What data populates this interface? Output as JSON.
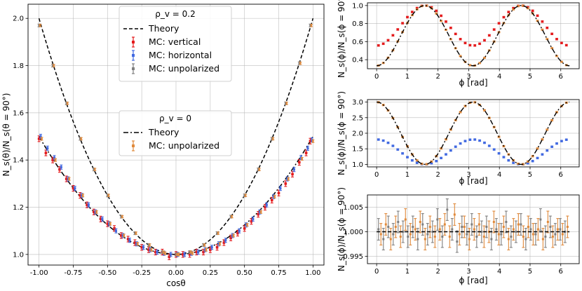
{
  "colors": {
    "theory": "#000000",
    "vertical": "#e41a1c",
    "horizontal": "#4169e1",
    "unpolarized_gray": "#7f7f7f",
    "unpolarized_orange": "#e08a3c",
    "grid": "#b0b0b0"
  },
  "chart_data": [
    {
      "id": "main",
      "type": "line",
      "xlabel": "cosθ",
      "ylabel": "N_s(θ)/N_s(θ = 90°)",
      "xlim": [
        -1.08,
        1.08
      ],
      "ylim": [
        0.955,
        2.06
      ],
      "xticks": [
        "-1.00",
        "-0.75",
        "-0.50",
        "-0.25",
        "0.00",
        "0.25",
        "0.50",
        "0.75",
        "1.00"
      ],
      "xtick_values": [
        -1.0,
        -0.75,
        -0.5,
        -0.25,
        0.0,
        0.25,
        0.5,
        0.75,
        1.0
      ],
      "yticks": [
        "1.0",
        "1.2",
        "1.4",
        "1.6",
        "1.8",
        "2.0"
      ],
      "ytick_values": [
        1.0,
        1.2,
        1.4,
        1.6,
        1.8,
        2.0
      ],
      "legend_upper": {
        "title": "ρ_v = 0.2",
        "entries": [
          "Theory",
          "MC: vertical",
          "MC: horizontal",
          "MC: unpolarized"
        ]
      },
      "legend_lower": {
        "title": "ρ_v = 0",
        "entries": [
          "Theory",
          "MC: unpolarized"
        ]
      },
      "series": [
        {
          "name": "Theory (ρ_v = 0.2)",
          "style": "dashed",
          "model": "1 + cos^2θ",
          "y_at_cos_minus1": 2.0,
          "y_at_cos0": 1.0,
          "y_at_cos1": 2.0
        },
        {
          "name": "Theory (ρ_v = 0)",
          "style": "dashdot",
          "model": "1 + 0.5 cos^2θ",
          "y_at_cos_minus1": 1.5,
          "y_at_cos0": 1.0,
          "y_at_cos1": 1.5
        },
        {
          "name": "MC: vertical",
          "marker": "errorbar",
          "x": [
            -1.0,
            -0.95,
            -0.9,
            -0.85,
            -0.8,
            -0.75,
            -0.7,
            -0.65,
            -0.6,
            -0.55,
            -0.5,
            -0.45,
            -0.4,
            -0.35,
            -0.3,
            -0.25,
            -0.2,
            -0.15,
            -0.1,
            -0.05,
            0.0,
            0.05,
            0.1,
            0.15,
            0.2,
            0.25,
            0.3,
            0.35,
            0.4,
            0.45,
            0.5,
            0.55,
            0.6,
            0.65,
            0.7,
            0.75,
            0.8,
            0.85,
            0.9,
            0.95,
            0.98
          ],
          "y": [
            1.49,
            1.43,
            1.4,
            1.36,
            1.32,
            1.28,
            1.25,
            1.21,
            1.18,
            1.15,
            1.13,
            1.11,
            1.08,
            1.065,
            1.05,
            1.03,
            1.02,
            1.01,
            1.01,
            0.99,
            1.0,
            1.0,
            1.0,
            1.01,
            1.01,
            1.02,
            1.03,
            1.05,
            1.07,
            1.09,
            1.11,
            1.14,
            1.17,
            1.2,
            1.23,
            1.26,
            1.3,
            1.34,
            1.39,
            1.43,
            1.48
          ]
        },
        {
          "name": "MC: horizontal",
          "marker": "errorbar",
          "x": [
            -1.0,
            -0.95,
            -0.9,
            -0.85,
            -0.8,
            -0.75,
            -0.7,
            -0.65,
            -0.6,
            -0.55,
            -0.5,
            -0.45,
            -0.4,
            -0.35,
            -0.3,
            -0.25,
            -0.2,
            -0.15,
            -0.1,
            -0.05,
            0.0,
            0.05,
            0.1,
            0.15,
            0.2,
            0.25,
            0.3,
            0.35,
            0.4,
            0.45,
            0.5,
            0.55,
            0.6,
            0.65,
            0.7,
            0.75,
            0.8,
            0.85,
            0.9,
            0.95,
            0.98
          ],
          "y": [
            1.5,
            1.45,
            1.41,
            1.37,
            1.32,
            1.28,
            1.25,
            1.21,
            1.18,
            1.15,
            1.13,
            1.1,
            1.08,
            1.06,
            1.045,
            1.03,
            1.02,
            1.01,
            1.005,
            1.0,
            1.0,
            1.0,
            1.005,
            1.01,
            1.02,
            1.03,
            1.045,
            1.06,
            1.08,
            1.1,
            1.125,
            1.15,
            1.18,
            1.21,
            1.245,
            1.28,
            1.32,
            1.36,
            1.41,
            1.45,
            1.485
          ]
        },
        {
          "name": "MC: unpolarized (ρ_v = 0.2)",
          "marker": "errorbar",
          "x": [
            -1.0,
            -0.9,
            -0.8,
            -0.7,
            -0.6,
            -0.5,
            -0.4,
            -0.3,
            -0.2,
            -0.1,
            0.0,
            0.1,
            0.2,
            0.3,
            0.4,
            0.5,
            0.6,
            0.7,
            0.8,
            0.9,
            0.98
          ],
          "y": [
            1.97,
            1.8,
            1.64,
            1.49,
            1.36,
            1.25,
            1.16,
            1.09,
            1.04,
            1.01,
            1.0,
            1.01,
            1.04,
            1.09,
            1.16,
            1.25,
            1.36,
            1.49,
            1.64,
            1.81,
            1.97
          ]
        },
        {
          "name": "MC: unpolarized (ρ_v = 0)",
          "marker": "errorbar",
          "x": [
            -1.0,
            -0.9,
            -0.8,
            -0.7,
            -0.6,
            -0.5,
            -0.4,
            -0.3,
            -0.2,
            -0.1,
            0.0,
            0.1,
            0.2,
            0.3,
            0.4,
            0.5,
            0.6,
            0.7,
            0.8,
            0.9,
            0.98
          ],
          "y": [
            1.49,
            1.4,
            1.32,
            1.25,
            1.18,
            1.13,
            1.08,
            1.045,
            1.02,
            1.005,
            1.0,
            1.005,
            1.02,
            1.045,
            1.08,
            1.125,
            1.18,
            1.245,
            1.32,
            1.405,
            1.48
          ]
        }
      ]
    },
    {
      "id": "top-right",
      "type": "line",
      "xlabel": "ϕ [rad]",
      "ylabel": "N_s(ϕ)/N_s(ϕ = 90°)",
      "xlim": [
        -0.3,
        6.6
      ],
      "ylim": [
        0.3,
        1.03
      ],
      "xticks": [
        "0",
        "1",
        "2",
        "3",
        "4",
        "5",
        "6"
      ],
      "xtick_values": [
        0,
        1,
        2,
        3,
        4,
        5,
        6
      ],
      "yticks": [
        "0.4",
        "0.6",
        "0.8",
        "1.0"
      ],
      "ytick_values": [
        0.4,
        0.6,
        0.8,
        1.0
      ],
      "series": [
        {
          "name": "MC: vertical",
          "marker": "errorbar",
          "model": "0.556 + 0.444 sin^2ϕ",
          "min": 0.556,
          "max": 1.0
        },
        {
          "name": "MC: horizontal",
          "marker": "errorbar",
          "model": "0.333 + 0.667 sin^2ϕ",
          "min": 0.333,
          "max": 1.0
        },
        {
          "name": "Theory",
          "style": "dashdot",
          "model": "0.333 + 0.667 sin^2ϕ"
        }
      ]
    },
    {
      "id": "middle-right",
      "type": "line",
      "xlabel": "ϕ [rad]",
      "ylabel": "N_s(ϕ)/N_s(ϕ = 90°)",
      "xlim": [
        -0.3,
        6.6
      ],
      "ylim": [
        0.92,
        3.08
      ],
      "xticks": [
        "0",
        "1",
        "2",
        "3",
        "4",
        "5",
        "6"
      ],
      "xtick_values": [
        0,
        1,
        2,
        3,
        4,
        5,
        6
      ],
      "yticks": [
        "1.0",
        "1.5",
        "2.0",
        "2.5",
        "3.0"
      ],
      "ytick_values": [
        1.0,
        1.5,
        2.0,
        2.5,
        3.0
      ],
      "series": [
        {
          "name": "MC: horizontal",
          "marker": "errorbar",
          "model": "1 + 0.8 cos^2ϕ",
          "min": 1.0,
          "max": 1.8
        },
        {
          "name": "MC: unpolarized",
          "marker": "errorbar",
          "model": "1 + 2 cos^2ϕ",
          "min": 1.0,
          "max": 3.0
        },
        {
          "name": "Theory",
          "style": "dashdot",
          "model": "1 + 2 cos^2ϕ"
        }
      ]
    },
    {
      "id": "bottom-right",
      "type": "line",
      "xlabel": "ϕ [rad]",
      "ylabel": "N_s(ϕ)/N_s(ϕ = 90°)",
      "xlim": [
        -0.3,
        6.6
      ],
      "ylim": [
        0.9935,
        1.0075
      ],
      "xticks": [
        "0",
        "1",
        "2",
        "3",
        "4",
        "5",
        "6"
      ],
      "xtick_values": [
        0,
        1,
        2,
        3,
        4,
        5,
        6
      ],
      "yticks": [
        "0.995",
        "1.000",
        "1.005"
      ],
      "ytick_values": [
        0.995,
        1.0,
        1.005
      ],
      "series": [
        {
          "name": "Theory",
          "style": "dashed",
          "value": 1.0
        },
        {
          "name": "MC: unpolarized (gray)",
          "marker": "errorbar",
          "x": [
            0.06,
            0.22,
            0.38,
            0.54,
            0.7,
            0.86,
            1.02,
            1.18,
            1.34,
            1.5,
            1.66,
            1.82,
            1.98,
            2.14,
            2.3,
            2.46,
            2.62,
            2.78,
            2.94,
            3.1,
            3.26,
            3.42,
            3.58,
            3.74,
            3.9,
            4.06,
            4.22,
            4.38,
            4.54,
            4.7,
            4.86,
            5.02,
            5.18,
            5.34,
            5.5,
            5.66,
            5.82,
            5.98,
            6.14
          ],
          "y": [
            1.0005,
            0.9985,
            1.001,
            0.9995,
            1.002,
            1.0,
            0.999,
            1.001,
            0.9985,
            1.0015,
            0.9995,
            1.0,
            1.0025,
            0.999,
            1.0045,
            1.0005,
            0.998,
            1.001,
            0.9995,
            1.0015,
            0.999,
            1.0,
            1.001,
            0.9985,
            1.0005,
            0.9995,
            1.002,
            0.999,
            1.0,
            1.0015,
            0.9985,
            1.0005,
            0.9995,
            1.0025,
            0.999,
            1.001,
            0.9995,
            1.0005,
            1.0
          ],
          "err": 0.0022
        },
        {
          "name": "MC: unpolarized (orange)",
          "marker": "errorbar",
          "x": [
            0.14,
            0.3,
            0.46,
            0.62,
            0.78,
            0.94,
            1.1,
            1.26,
            1.42,
            1.58,
            1.74,
            1.9,
            2.06,
            2.22,
            2.38,
            2.54,
            2.7,
            2.86,
            3.02,
            3.18,
            3.34,
            3.5,
            3.66,
            3.82,
            3.98,
            4.14,
            4.3,
            4.46,
            4.62,
            4.78,
            4.94,
            5.1,
            5.26,
            5.42,
            5.58,
            5.74,
            5.9,
            6.06,
            6.22
          ],
          "y": [
            0.9995,
            1.0015,
            0.9985,
            1.001,
            0.999,
            1.0025,
            0.9995,
            1.0005,
            1.002,
            0.9985,
            1.001,
            0.999,
            1.0005,
            1.0015,
            0.999,
            1.0035,
            0.9995,
            1.001,
            0.9985,
            1.0005,
            1.0015,
            0.999,
            1.0,
            1.002,
            0.9995,
            1.001,
            0.9985,
            1.0005,
            1.0015,
            0.999,
            1.001,
            0.9995,
            1.0005,
            0.9985,
            1.002,
            0.999,
            1.0005,
            0.9995,
            1.001
          ],
          "err": 0.0022
        }
      ]
    }
  ]
}
